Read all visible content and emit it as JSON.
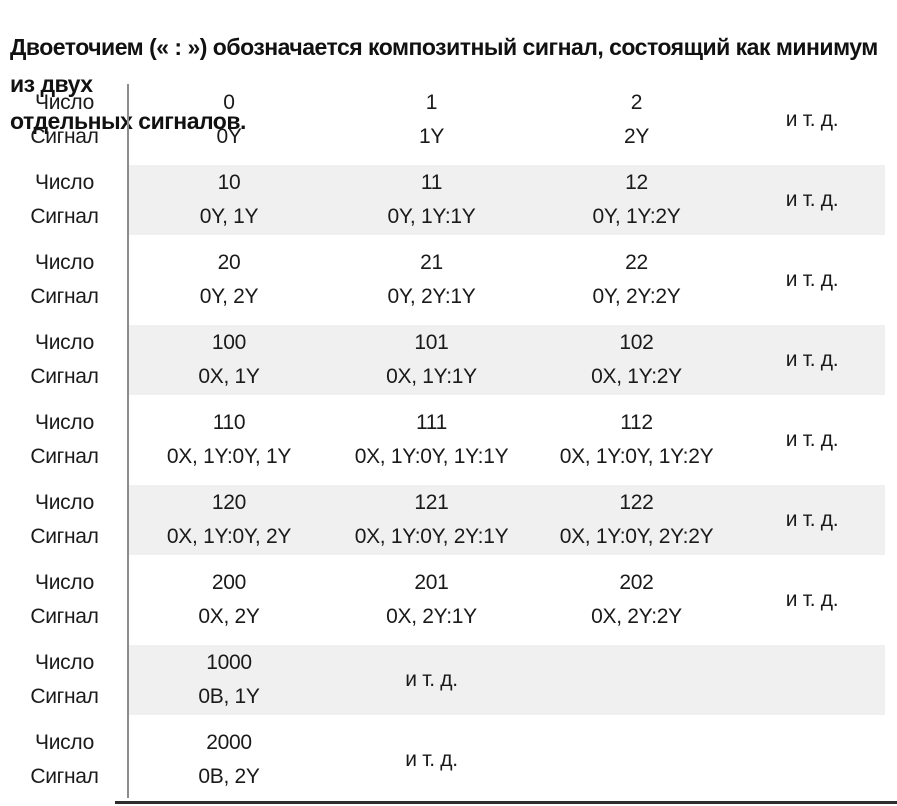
{
  "intro": {
    "line1": "Двоеточием (« : ») обозначается композитный сигнал, состоящий как минимум из двух",
    "line2": "отдельных сигналов."
  },
  "table": {
    "number_label": "Число",
    "signal_label": "Сигнал",
    "colors": {
      "shaded_row_bg": "#f0f0f0",
      "divider": "#8c8c8c",
      "text": "#1a1a1a",
      "bottom_rule": "#2e2e2e"
    },
    "rows": [
      {
        "shaded": false,
        "etc": "и т. д.",
        "etc_position": "last",
        "cells": [
          {
            "number": "0",
            "signal": "0Y"
          },
          {
            "number": "1",
            "signal": "1Y"
          },
          {
            "number": "2",
            "signal": "2Y"
          }
        ]
      },
      {
        "shaded": true,
        "etc": "и т. д.",
        "etc_position": "last",
        "cells": [
          {
            "number": "10",
            "signal": "0Y, 1Y"
          },
          {
            "number": "11",
            "signal": "0Y, 1Y:1Y"
          },
          {
            "number": "12",
            "signal": "0Y, 1Y:2Y"
          }
        ]
      },
      {
        "shaded": false,
        "etc": "и т. д.",
        "etc_position": "last",
        "cells": [
          {
            "number": "20",
            "signal": "0Y, 2Y"
          },
          {
            "number": "21",
            "signal": "0Y, 2Y:1Y"
          },
          {
            "number": "22",
            "signal": "0Y, 2Y:2Y"
          }
        ]
      },
      {
        "shaded": true,
        "etc": "и т. д.",
        "etc_position": "last",
        "cells": [
          {
            "number": "100",
            "signal": "0X, 1Y"
          },
          {
            "number": "101",
            "signal": "0X, 1Y:1Y"
          },
          {
            "number": "102",
            "signal": "0X, 1Y:2Y"
          }
        ]
      },
      {
        "shaded": false,
        "etc": "и т. д.",
        "etc_position": "last",
        "cells": [
          {
            "number": "110",
            "signal": "0X, 1Y:0Y, 1Y"
          },
          {
            "number": "111",
            "signal": "0X, 1Y:0Y, 1Y:1Y"
          },
          {
            "number": "112",
            "signal": "0X, 1Y:0Y, 1Y:2Y"
          }
        ]
      },
      {
        "shaded": true,
        "etc": "и т. д.",
        "etc_position": "last",
        "cells": [
          {
            "number": "120",
            "signal": "0X, 1Y:0Y, 2Y"
          },
          {
            "number": "121",
            "signal": "0X, 1Y:0Y, 2Y:1Y"
          },
          {
            "number": "122",
            "signal": "0X, 1Y:0Y, 2Y:2Y"
          }
        ]
      },
      {
        "shaded": false,
        "etc": "и т. д.",
        "etc_position": "last",
        "cells": [
          {
            "number": "200",
            "signal": "0X, 2Y"
          },
          {
            "number": "201",
            "signal": "0X, 2Y:1Y"
          },
          {
            "number": "202",
            "signal": "0X, 2Y:2Y"
          }
        ]
      },
      {
        "shaded": true,
        "etc": "и т. д.",
        "etc_position": "second",
        "cells": [
          {
            "number": "1000",
            "signal": "0B, 1Y"
          }
        ]
      },
      {
        "shaded": false,
        "etc": "и т. д.",
        "etc_position": "second",
        "cells": [
          {
            "number": "2000",
            "signal": "0B, 2Y"
          }
        ]
      }
    ]
  }
}
